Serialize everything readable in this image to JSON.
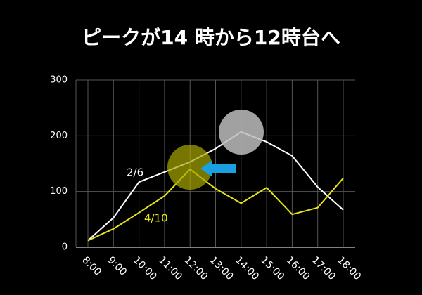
{
  "chart_data": {
    "type": "line",
    "title": "ピークが14 時から12時台へ",
    "categories": [
      "8:00",
      "9:00",
      "10:00",
      "11:00",
      "12:00",
      "13:00",
      "14:00",
      "15:00",
      "16:00",
      "17:00",
      "18:00"
    ],
    "series": [
      {
        "name": "2/6",
        "color": "#ffffff",
        "values": [
          12,
          53,
          117,
          135,
          153,
          177,
          207,
          189,
          164,
          108,
          67
        ]
      },
      {
        "name": "4/10",
        "color": "#e6e619",
        "values": [
          12,
          33,
          62,
          92,
          140,
          105,
          79,
          107,
          59,
          71,
          124
        ]
      }
    ],
    "ylim": [
      0,
      300
    ],
    "yticks": [
      0,
      100,
      200,
      300
    ],
    "grid": true
  }
}
